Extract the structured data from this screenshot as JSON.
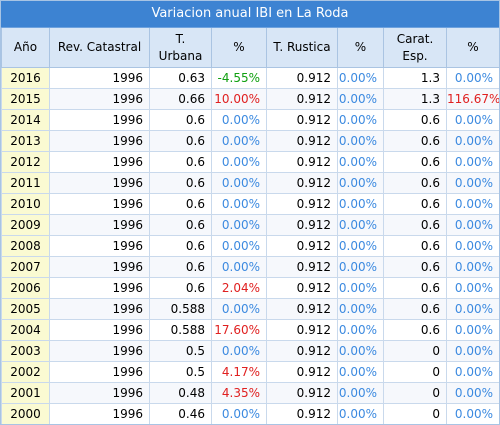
{
  "title": "Variacion anual IBI en La Roda",
  "headers": [
    "Año",
    "Rev. Catastral",
    "T. Urbana",
    "%",
    "T. Rustica",
    "%",
    "Carat.\nEsp.",
    "%"
  ],
  "rows": [
    {
      "year": "2016",
      "rev": "1996",
      "urb": "0.63",
      "urb_pct": "-4.55%",
      "rus": "0.912",
      "rus_pct": "0.00%",
      "esp": "1.3",
      "esp_pct": "0.00%"
    },
    {
      "year": "2015",
      "rev": "1996",
      "urb": "0.66",
      "urb_pct": "10.00%",
      "rus": "0.912",
      "rus_pct": "0.00%",
      "esp": "1.3",
      "esp_pct": "116.67%"
    },
    {
      "year": "2014",
      "rev": "1996",
      "urb": "0.6",
      "urb_pct": "0.00%",
      "rus": "0.912",
      "rus_pct": "0.00%",
      "esp": "0.6",
      "esp_pct": "0.00%"
    },
    {
      "year": "2013",
      "rev": "1996",
      "urb": "0.6",
      "urb_pct": "0.00%",
      "rus": "0.912",
      "rus_pct": "0.00%",
      "esp": "0.6",
      "esp_pct": "0.00%"
    },
    {
      "year": "2012",
      "rev": "1996",
      "urb": "0.6",
      "urb_pct": "0.00%",
      "rus": "0.912",
      "rus_pct": "0.00%",
      "esp": "0.6",
      "esp_pct": "0.00%"
    },
    {
      "year": "2011",
      "rev": "1996",
      "urb": "0.6",
      "urb_pct": "0.00%",
      "rus": "0.912",
      "rus_pct": "0.00%",
      "esp": "0.6",
      "esp_pct": "0.00%"
    },
    {
      "year": "2010",
      "rev": "1996",
      "urb": "0.6",
      "urb_pct": "0.00%",
      "rus": "0.912",
      "rus_pct": "0.00%",
      "esp": "0.6",
      "esp_pct": "0.00%"
    },
    {
      "year": "2009",
      "rev": "1996",
      "urb": "0.6",
      "urb_pct": "0.00%",
      "rus": "0.912",
      "rus_pct": "0.00%",
      "esp": "0.6",
      "esp_pct": "0.00%"
    },
    {
      "year": "2008",
      "rev": "1996",
      "urb": "0.6",
      "urb_pct": "0.00%",
      "rus": "0.912",
      "rus_pct": "0.00%",
      "esp": "0.6",
      "esp_pct": "0.00%"
    },
    {
      "year": "2007",
      "rev": "1996",
      "urb": "0.6",
      "urb_pct": "0.00%",
      "rus": "0.912",
      "rus_pct": "0.00%",
      "esp": "0.6",
      "esp_pct": "0.00%"
    },
    {
      "year": "2006",
      "rev": "1996",
      "urb": "0.6",
      "urb_pct": "2.04%",
      "rus": "0.912",
      "rus_pct": "0.00%",
      "esp": "0.6",
      "esp_pct": "0.00%"
    },
    {
      "year": "2005",
      "rev": "1996",
      "urb": "0.588",
      "urb_pct": "0.00%",
      "rus": "0.912",
      "rus_pct": "0.00%",
      "esp": "0.6",
      "esp_pct": "0.00%"
    },
    {
      "year": "2004",
      "rev": "1996",
      "urb": "0.588",
      "urb_pct": "17.60%",
      "rus": "0.912",
      "rus_pct": "0.00%",
      "esp": "0.6",
      "esp_pct": "0.00%"
    },
    {
      "year": "2003",
      "rev": "1996",
      "urb": "0.5",
      "urb_pct": "0.00%",
      "rus": "0.912",
      "rus_pct": "0.00%",
      "esp": "0",
      "esp_pct": "0.00%"
    },
    {
      "year": "2002",
      "rev": "1996",
      "urb": "0.5",
      "urb_pct": "4.17%",
      "rus": "0.912",
      "rus_pct": "0.00%",
      "esp": "0",
      "esp_pct": "0.00%"
    },
    {
      "year": "2001",
      "rev": "1996",
      "urb": "0.48",
      "urb_pct": "4.35%",
      "rus": "0.912",
      "rus_pct": "0.00%",
      "esp": "0",
      "esp_pct": "0.00%"
    },
    {
      "year": "2000",
      "rev": "1996",
      "urb": "0.46",
      "urb_pct": "0.00%",
      "rus": "0.912",
      "rus_pct": "0.00%",
      "esp": "0",
      "esp_pct": "0.00%"
    }
  ],
  "colors": {
    "positive": "#e02020",
    "negative": "#10a010",
    "zero": "#3c8ae0",
    "title_bg": "#3d83d2",
    "header_bg": "#d8e6f6",
    "year_bg": "#fafad2"
  }
}
